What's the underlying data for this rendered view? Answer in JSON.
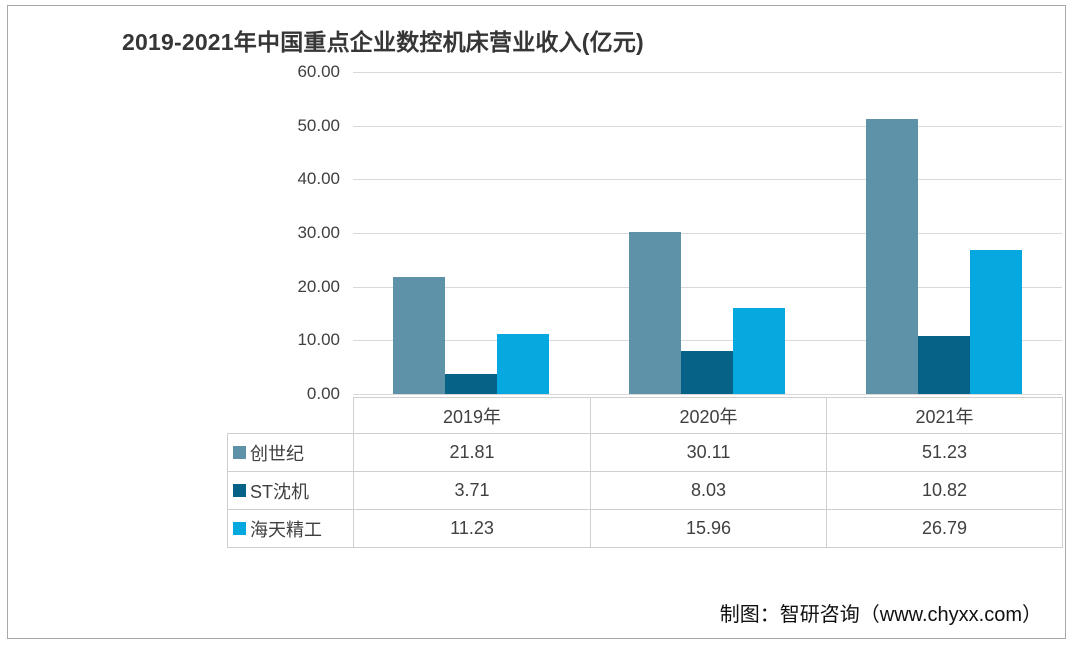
{
  "page": {
    "source": "制图：智研咨询（www.chyxx.com）"
  },
  "chart_data": {
    "type": "bar",
    "title": "2019-2021年中国重点企业数控机床营业收入(亿元)",
    "categories": [
      "2019年",
      "2020年",
      "2021年"
    ],
    "series": [
      {
        "name": "创世纪",
        "color": "#5E92A9",
        "values": [
          21.81,
          30.11,
          51.23
        ]
      },
      {
        "name": "ST沈机",
        "color": "#066287",
        "values": [
          3.71,
          8.03,
          10.82
        ]
      },
      {
        "name": "海天精工",
        "color": "#06A8E0",
        "values": [
          11.23,
          15.96,
          26.79
        ]
      }
    ],
    "xlabel": "",
    "ylabel": "",
    "ylim": [
      0,
      60
    ],
    "yticks": [
      0,
      10,
      20,
      30,
      40,
      50,
      60
    ],
    "ytick_label_format": "two-decimal",
    "value_label_format": "two-decimal",
    "grid": true,
    "legend_position": "table-left-column",
    "data_table_shown": true
  },
  "colors": {
    "gridline": "#d9d9d9",
    "table_border": "#cfcfcf",
    "text": "#404040",
    "title_text": "#363636",
    "frame_border": "#a8a8a8",
    "background": "#ffffff"
  }
}
